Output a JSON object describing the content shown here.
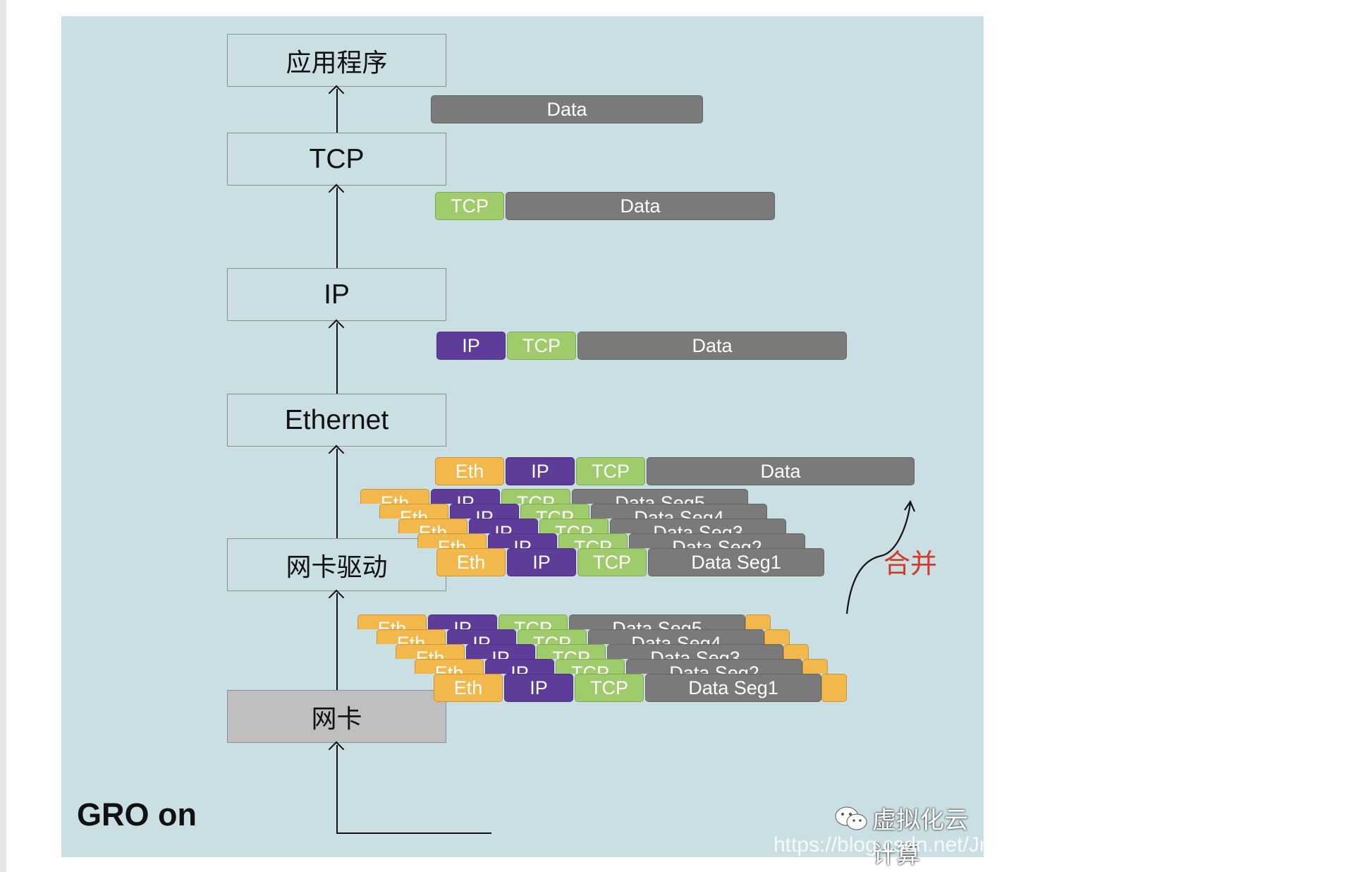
{
  "layers": {
    "app": "应用程序",
    "tcp": "TCP",
    "ip": "IP",
    "ethernet": "Ethernet",
    "driver": "网卡驱动",
    "nic": "网卡"
  },
  "packets": {
    "app_level": [
      "Data"
    ],
    "tcp_level": [
      "TCP",
      "Data"
    ],
    "ip_level": [
      "IP",
      "TCP",
      "Data"
    ],
    "eth_level": [
      "Eth",
      "IP",
      "TCP",
      "Data"
    ]
  },
  "segments": {
    "eth": "Eth",
    "ip": "IP",
    "tcp": "TCP",
    "data_seg": [
      "Data Seg1",
      "Data Seg2",
      "Data Seg3",
      "Data Seg4",
      "Data Seg5"
    ]
  },
  "merge_label": "合并",
  "mode_label": "GRO on",
  "watermark": {
    "cn": "虚拟化云计算",
    "url": "https://blog.csdn.net/Jmilk"
  },
  "colors": {
    "eth": "#f2b84b",
    "ip": "#5e3c99",
    "tcp": "#9fcb6b",
    "data": "#7a7a7a",
    "background": "#c9dfe4",
    "merge": "#d23a2a"
  },
  "icons": [
    "wechat-icon",
    "up-arrow-icon"
  ]
}
